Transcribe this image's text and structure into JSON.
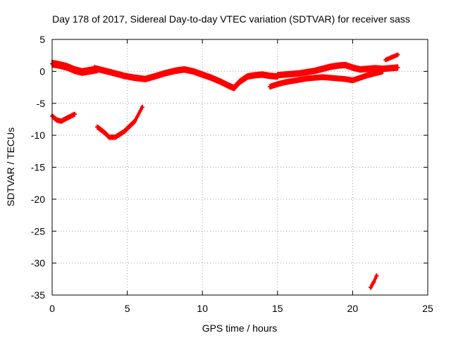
{
  "chart_data": {
    "type": "scatter",
    "title": "Day 178 of 2017, Sidereal Day-to-day VTEC variation (SDTVAR) for receiver sass",
    "xlabel": "GPS time / hours",
    "ylabel": "SDTVAR / TECUs",
    "xlim": [
      0,
      25
    ],
    "ylim": [
      -35,
      5
    ],
    "xticks": [
      0,
      5,
      10,
      15,
      20,
      25
    ],
    "xtick_labels": [
      "0",
      "5",
      "10",
      "15",
      "20",
      "25"
    ],
    "yticks": [
      -35,
      -30,
      -25,
      -20,
      -15,
      -10,
      -5,
      0,
      5
    ],
    "ytick_labels": [
      "-35",
      "-30",
      "-25",
      "-20",
      "-15",
      "-10",
      "-5",
      "0",
      "5"
    ],
    "grid": true,
    "legend": false,
    "series_color": "#ff0000",
    "series": [
      {
        "name": "trace-main-a",
        "x": [
          0,
          0.5,
          1,
          1.5,
          2,
          2.5,
          3
        ],
        "y": [
          1.2,
          1.0,
          0.7,
          0.2,
          -0.1,
          0.1,
          0.3
        ],
        "band": 1.0
      },
      {
        "name": "trace-main-b",
        "x": [
          2.8,
          3.3,
          4,
          4.8,
          5.5,
          6.2,
          6.8,
          7.5,
          8.2,
          8.8,
          9.4,
          10,
          10.6,
          11.2,
          11.8,
          12.1,
          12.5,
          13,
          13.5,
          14,
          14.5,
          15
        ],
        "y": [
          0.5,
          0.2,
          -0.2,
          -0.7,
          -1.0,
          -1.2,
          -0.8,
          -0.3,
          0.1,
          0.3,
          0.0,
          -0.5,
          -1.0,
          -1.6,
          -2.3,
          -2.6,
          -1.6,
          -0.8,
          -0.6,
          -0.5,
          -0.7,
          -0.8
        ],
        "band": 0.8
      },
      {
        "name": "trace-main-c",
        "x": [
          15,
          15.5,
          16,
          16.5,
          17,
          17.5,
          18,
          18.5,
          19,
          19.5,
          20,
          20.5,
          21,
          21.5,
          22,
          22.5,
          23
        ],
        "y": [
          -0.6,
          -0.5,
          -0.4,
          -0.3,
          -0.1,
          0.1,
          0.4,
          0.7,
          0.9,
          1.0,
          0.6,
          0.3,
          0.4,
          0.5,
          0.4,
          0.5,
          0.6
        ],
        "band": 0.8
      },
      {
        "name": "trace-main-d",
        "x": [
          14.5,
          15,
          15.5,
          16,
          16.5,
          17,
          17.5,
          18,
          18.5,
          19,
          19.5,
          20,
          20.5,
          21,
          21.5,
          22
        ],
        "y": [
          -2.4,
          -2.0,
          -1.7,
          -1.5,
          -1.3,
          -1.1,
          -1.0,
          -0.9,
          -1.0,
          -1.1,
          -1.2,
          -1.4,
          -1.0,
          -0.6,
          -0.3,
          0.0
        ],
        "band": 0.7
      },
      {
        "name": "trace-high",
        "x": [
          22.2,
          22.6,
          23
        ],
        "y": [
          1.8,
          2.2,
          2.6
        ],
        "band": 0.5
      },
      {
        "name": "trace-neg-early",
        "x": [
          0,
          0.3,
          0.6,
          1,
          1.5
        ],
        "y": [
          -7.0,
          -7.6,
          -7.8,
          -7.3,
          -6.7
        ],
        "band": 0.6
      },
      {
        "name": "trace-neg-mid",
        "x": [
          3,
          3.5,
          3.8,
          4.2,
          4.8,
          5.5,
          6
        ],
        "y": [
          -8.7,
          -9.6,
          -10.3,
          -10.3,
          -9.4,
          -7.8,
          -5.6
        ],
        "band": 0.6
      },
      {
        "name": "trace-deep",
        "x": [
          21.2,
          21.4,
          21.6
        ],
        "y": [
          -33.8,
          -33.0,
          -32.0
        ],
        "band": 0.6
      }
    ]
  }
}
